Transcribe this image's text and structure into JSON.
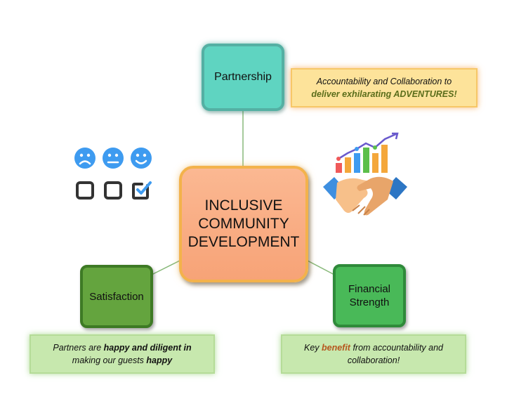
{
  "center": {
    "line1": "INCLUSIVE",
    "line2": "COMMUNITY",
    "line3": "DEVELOPMENT"
  },
  "partnership": {
    "label": "Partnership",
    "note_line1": "Accountability and Collaboration to",
    "note_line2": "deliver exhilarating ADVENTURES!"
  },
  "satisfaction": {
    "label": "Satisfaction",
    "note_part1": "Partners are ",
    "note_part2": "happy and diligent in",
    "note_part3": "making our guests ",
    "note_part4": "happy"
  },
  "financial": {
    "label_line1": "Financial",
    "label_line2": "Strength",
    "note_part1": "Key ",
    "note_part2": "benefit",
    "note_part3": " from accountability and",
    "note_part4": "collaboration!"
  },
  "icons": {
    "feedback": "satisfaction-feedback-icon",
    "handshake": "handshake-growth-icon"
  },
  "colors": {
    "center_fill": "#f7a377",
    "center_border": "#f3b24b",
    "partnership_fill": "#5fd4c1",
    "satisfaction_fill": "#64a43e",
    "financial_fill": "#49b958",
    "note_orange": "#fde39a",
    "note_green": "#c7e8ae",
    "connector": "#88b97a"
  }
}
